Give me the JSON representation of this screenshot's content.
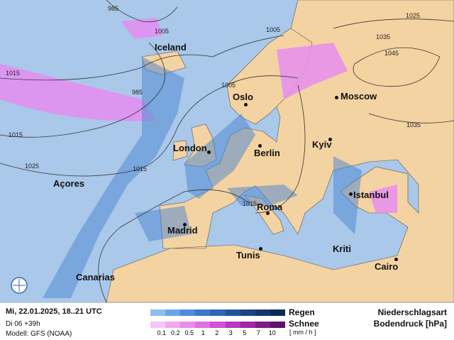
{
  "map": {
    "colors": {
      "sea": "#a9c8ea",
      "land": "#f4d3a2",
      "rain": "#4a86d0",
      "snow": "#e68ef0",
      "isobar": "#333333"
    },
    "cities": [
      {
        "name": "Iceland",
        "dot": false
      },
      {
        "name": "Oslo",
        "dot": true
      },
      {
        "name": "Moscow",
        "dot": true
      },
      {
        "name": "London",
        "dot": true
      },
      {
        "name": "Berlin",
        "dot": true
      },
      {
        "name": "Kyiv",
        "dot": true
      },
      {
        "name": "Açores",
        "dot": false
      },
      {
        "name": "Istanbul",
        "dot": true
      },
      {
        "name": "Madrid",
        "dot": true
      },
      {
        "name": "Roma",
        "dot": true
      },
      {
        "name": "Tunis",
        "dot": true
      },
      {
        "name": "Kriti",
        "dot": false
      },
      {
        "name": "Cairo",
        "dot": true
      },
      {
        "name": "Canarias",
        "dot": false
      }
    ],
    "isobar_labels": [
      "985",
      "1005",
      "1005",
      "1015",
      "985",
      "1015",
      "1025",
      "1015",
      "1005",
      "1035",
      "1045",
      "1025",
      "1035",
      "1015"
    ],
    "logo_icon": "weather-globe-icon"
  },
  "legend": {
    "datetime": "Mi, 22.01.2025, 18..21 UTC",
    "run": "Di 06 +39h",
    "model": "Modell: GFS (NOAA)",
    "rain_label": "Regen",
    "snow_label": "Schnee",
    "scale": [
      "0.1",
      "0.2",
      "0.5",
      "1",
      "2",
      "3",
      "5",
      "7",
      "10"
    ],
    "unit": "[ mm / h ]",
    "title1": "Niederschlagsart",
    "title2": "Bodendruck [hPa]",
    "rain_colors": [
      "#8cbef0",
      "#6aa6e6",
      "#4a8cda",
      "#3a78c8",
      "#2e66b4",
      "#24549c",
      "#1c4484",
      "#14366c",
      "#0c2a58"
    ],
    "snow_colors": [
      "#f6c4f6",
      "#f0a8f0",
      "#ea8cea",
      "#e070e6",
      "#d050d8",
      "#b838c0",
      "#9c28a4",
      "#801c88",
      "#60106a"
    ]
  }
}
